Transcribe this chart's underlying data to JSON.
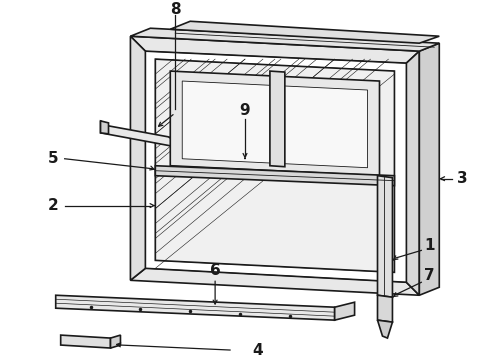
{
  "bg_color": "#ffffff",
  "line_color": "#1a1a1a",
  "fig_width": 4.9,
  "fig_height": 3.6,
  "dpi": 100,
  "lw_main": 1.2,
  "lw_thin": 0.6,
  "lw_label": 0.8,
  "gray_fill": "#f2f2f2",
  "gray_mid": "#e0e0e0",
  "gray_dark": "#cccccc",
  "white_fill": "#ffffff"
}
